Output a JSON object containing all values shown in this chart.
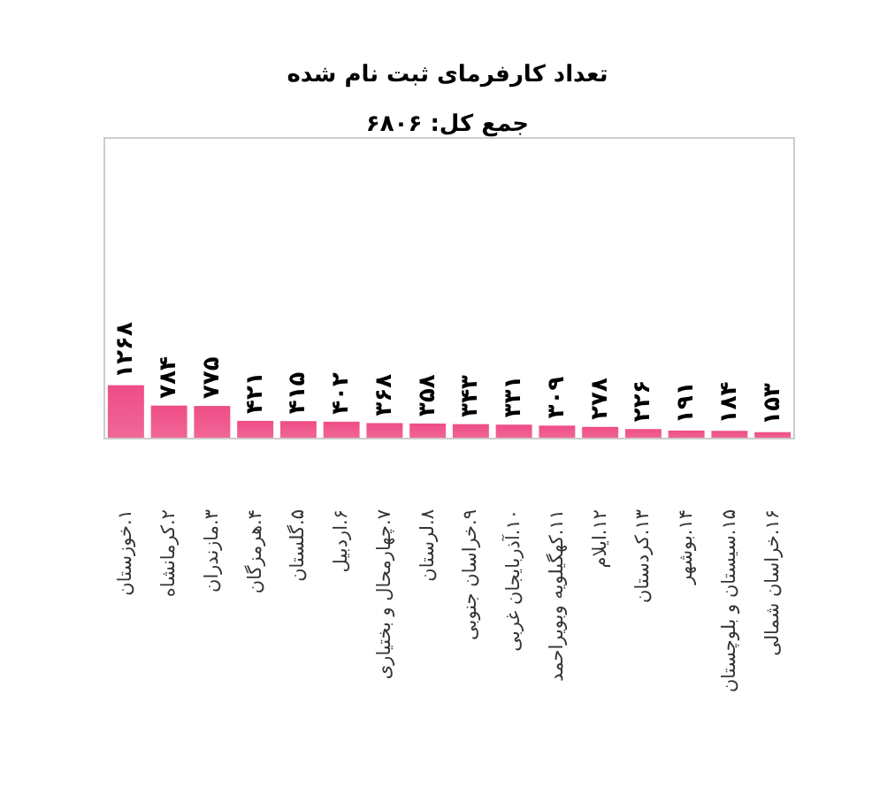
{
  "chart_data": {
    "type": "bar",
    "title": "تعداد کارفرمای ثبت نام شده",
    "subtitle": "جمع کل: ۶۸۰۶",
    "categories": [
      "۱.خوزستان",
      "۲.کرمانشاه",
      "۳.مازندران",
      "۴.هرمزگان",
      "۵.گلستان",
      "۶.اردبیل",
      "۷.چهارمحال و بختیاری",
      "۸.لرستان",
      "۹.خراسان جنوبی",
      "۱۰.آذربایجان غربی",
      "۱۱.کهگیلویه وبویراحمد",
      "۱۲.ایلام",
      "۱۳.کردستان",
      "۱۴.بوشهر",
      "۱۵.سیستان و بلوچستان",
      "۱۶.خراسان شمالی"
    ],
    "values": [
      1268,
      784,
      775,
      421,
      415,
      402,
      368,
      358,
      343,
      331,
      309,
      278,
      226,
      191,
      184,
      153
    ],
    "value_labels": [
      "۱۲۶۸",
      "۷۸۴",
      "۷۷۵",
      "۴۲۱",
      "۴۱۵",
      "۴۰۲",
      "۳۶۸",
      "۳۵۸",
      "۳۴۳",
      "۳۳۱",
      "۳۰۹",
      "۲۷۸",
      "۲۲۶",
      "۱۹۱",
      "۱۸۴",
      "۱۵۳"
    ],
    "color": "#ee4d86"
  }
}
